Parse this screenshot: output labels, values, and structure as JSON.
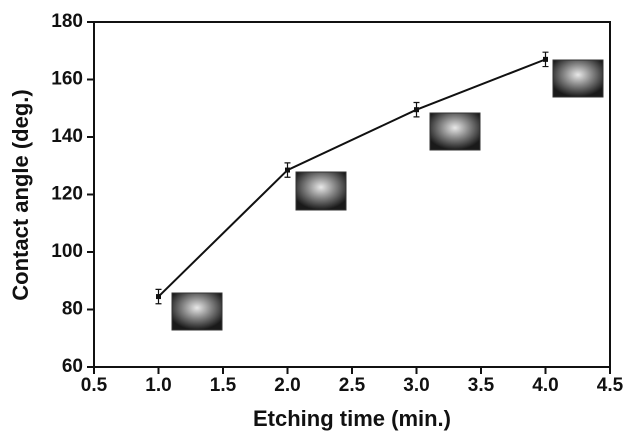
{
  "chart_data": {
    "type": "line",
    "x_label": "Etching time (min.)",
    "y_label": "Contact angle (deg.)",
    "x": [
      1,
      2,
      3,
      4
    ],
    "values": [
      84.5,
      128.5,
      149.5,
      167
    ],
    "errors": [
      2.5,
      2.5,
      2.5,
      2.5
    ],
    "color": "#111111",
    "xlim": [
      0.5,
      4.5
    ],
    "xticks": [
      0.5,
      {
        "value": 1,
        "label": "1.0"
      },
      1.5,
      {
        "value": 2,
        "label": "2.0"
      },
      2.5,
      {
        "value": 3,
        "label": "3.0"
      },
      3.5,
      {
        "value": 4,
        "label": "4.0"
      },
      4.5
    ],
    "ylim": [
      60,
      180
    ],
    "yticks": [
      60,
      80,
      100,
      120,
      140,
      160,
      180
    ]
  }
}
